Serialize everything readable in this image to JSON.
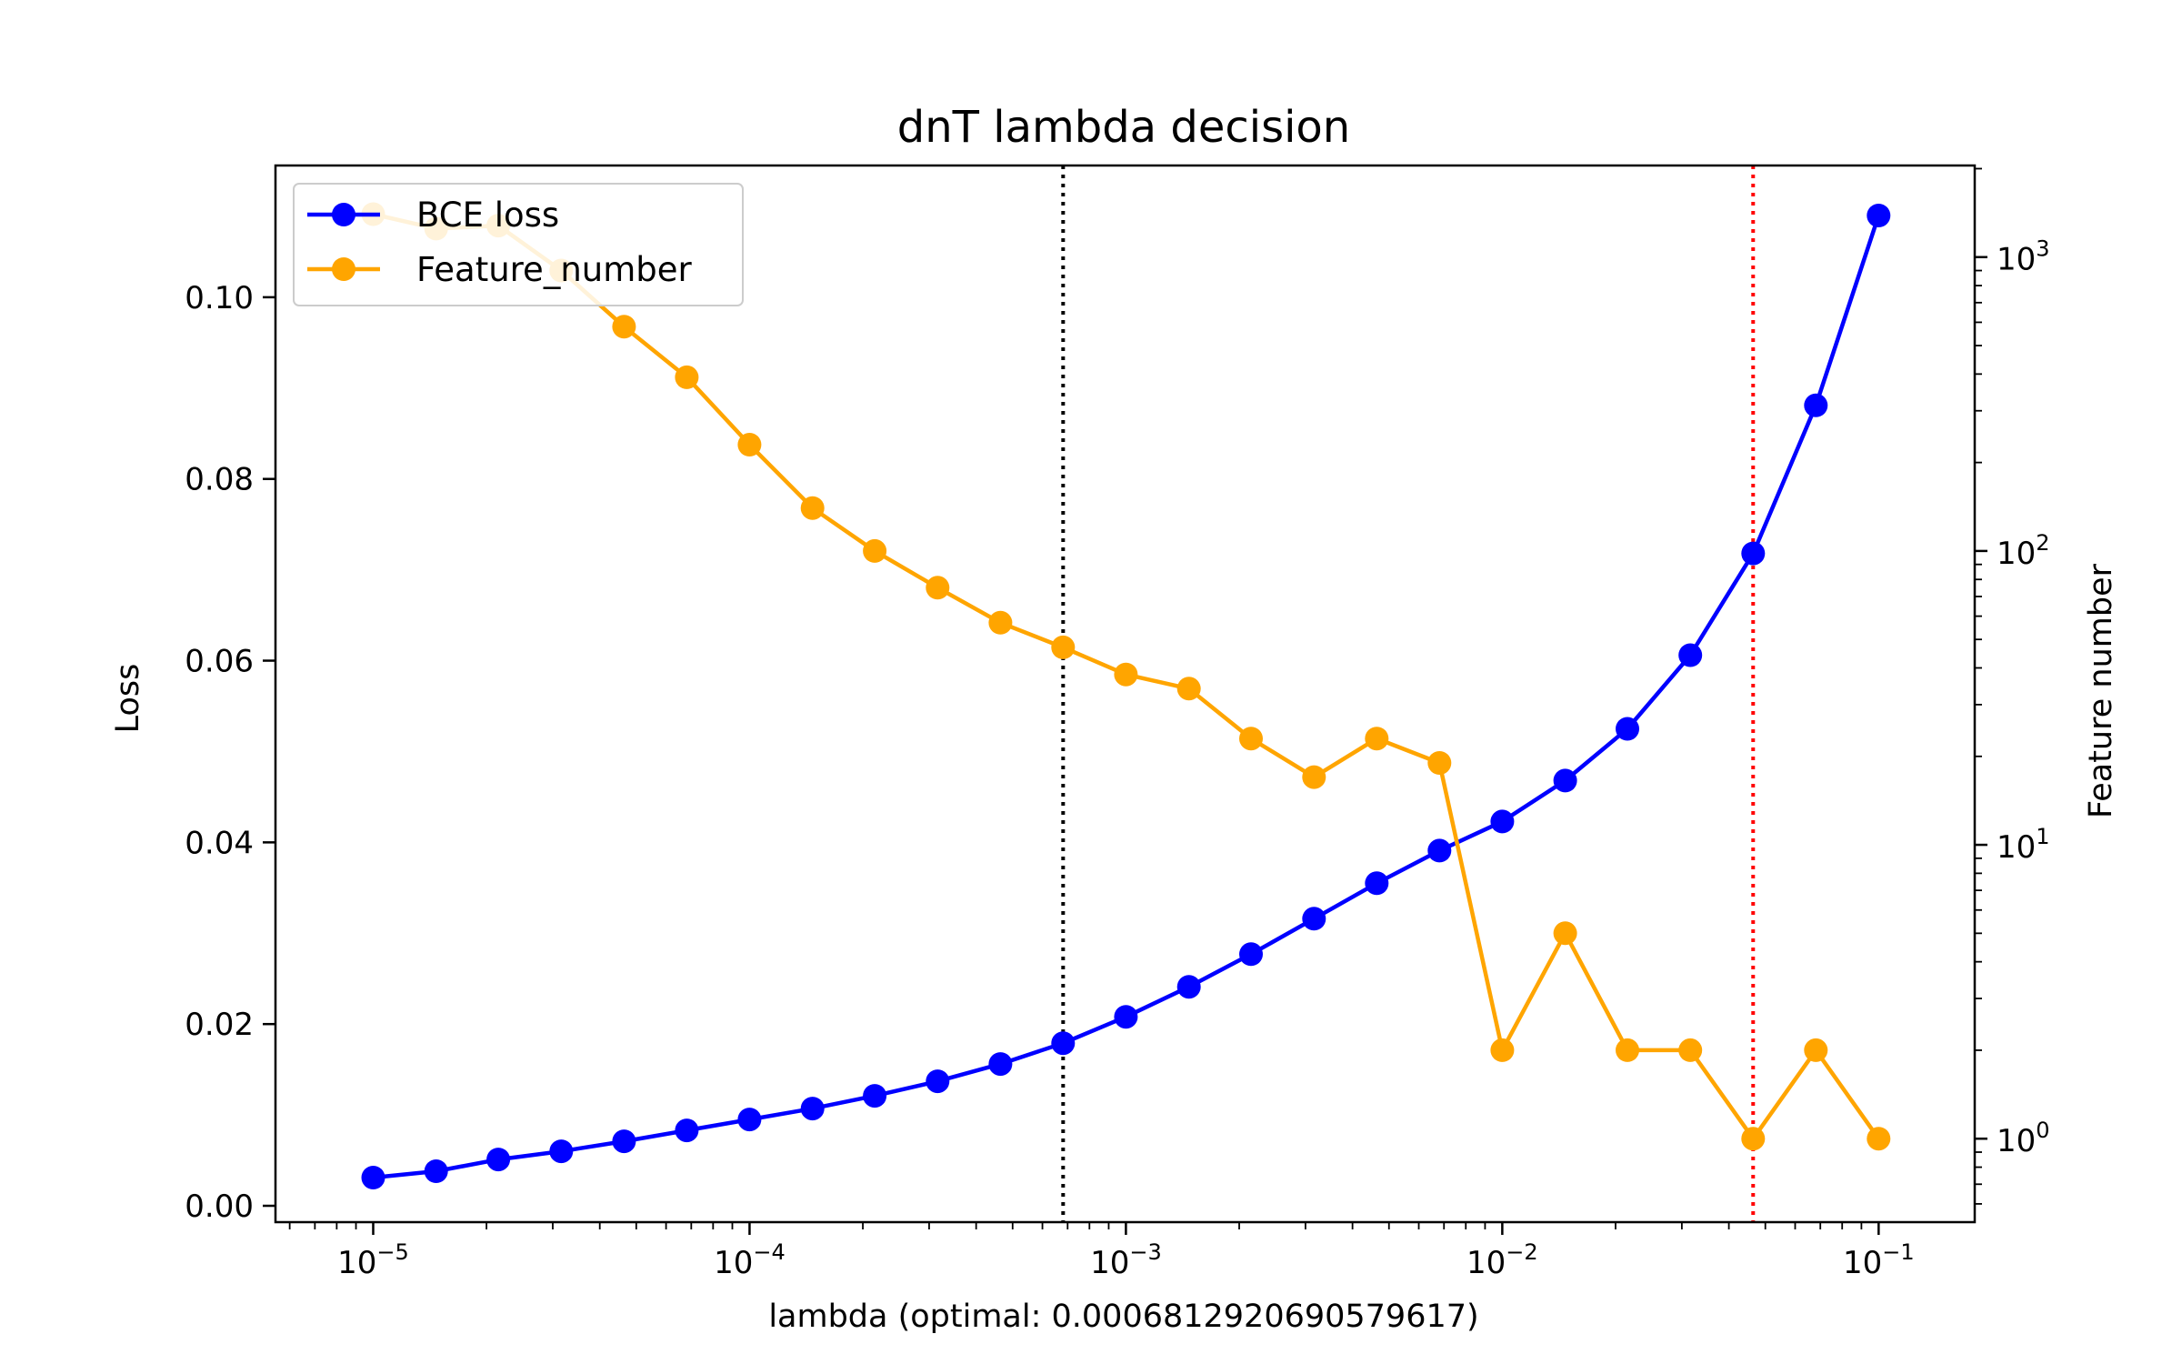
{
  "chart_data": {
    "type": "line",
    "title": "dnT lambda decision",
    "xlabel": "lambda (optimal: 0.0006812920690579617)",
    "ylabel": "Loss",
    "y2label": "Feature number",
    "xscale": "log",
    "y2scale": "log",
    "xlim": [
      5.5e-06,
      0.18
    ],
    "ylim": [
      -0.0018,
      0.1145
    ],
    "y2lim": [
      0.52,
      2050
    ],
    "x_ticks": [
      1e-05,
      0.0001,
      0.001,
      0.01,
      0.1
    ],
    "x_tick_labels": [
      {
        "base": "10",
        "exp": "−5"
      },
      {
        "base": "10",
        "exp": "−4"
      },
      {
        "base": "10",
        "exp": "−3"
      },
      {
        "base": "10",
        "exp": "−2"
      },
      {
        "base": "10",
        "exp": "−1"
      }
    ],
    "y_ticks": [
      0.0,
      0.02,
      0.04,
      0.06,
      0.08,
      0.1
    ],
    "y_tick_labels": [
      "0.00",
      "0.02",
      "0.04",
      "0.06",
      "0.08",
      "0.10"
    ],
    "y2_ticks": [
      1,
      10,
      100,
      1000
    ],
    "y2_tick_labels": [
      {
        "base": "10",
        "exp": "0"
      },
      {
        "base": "10",
        "exp": "1"
      },
      {
        "base": "10",
        "exp": "2"
      },
      {
        "base": "10",
        "exp": "3"
      }
    ],
    "x": [
      1e-05,
      1.47e-05,
      2.15e-05,
      3.16e-05,
      4.64e-05,
      6.81e-05,
      0.0001,
      0.000147,
      0.000215,
      0.000316,
      0.000464,
      0.000681,
      0.001,
      0.00147,
      0.00215,
      0.00316,
      0.00464,
      0.00681,
      0.01,
      0.0147,
      0.0215,
      0.0316,
      0.0464,
      0.0681,
      0.1
    ],
    "series": [
      {
        "name": "BCE loss",
        "color": "#0000ff",
        "axis": "left",
        "values": [
          0.0031,
          0.0038,
          0.0051,
          0.006,
          0.0071,
          0.0083,
          0.0095,
          0.0107,
          0.0121,
          0.0137,
          0.0156,
          0.0179,
          0.0208,
          0.0241,
          0.0277,
          0.0316,
          0.0355,
          0.0391,
          0.0423,
          0.0468,
          0.0525,
          0.0606,
          0.0718,
          0.0881,
          0.109
        ]
      },
      {
        "name": "Feature_number",
        "color": "#ffa500",
        "axis": "right",
        "values": [
          1400,
          1250,
          1280,
          900,
          580,
          390,
          230,
          140,
          100,
          75,
          57,
          47,
          38,
          34,
          23,
          17,
          23,
          19,
          2,
          5,
          2,
          2,
          1,
          2,
          1
        ]
      }
    ],
    "vlines": [
      {
        "x": 0.000681,
        "color": "#000000",
        "style": "dotted"
      },
      {
        "x": 0.0464,
        "color": "#ff0000",
        "style": "dotted"
      }
    ],
    "legend_position": "top-left",
    "grid": false
  }
}
